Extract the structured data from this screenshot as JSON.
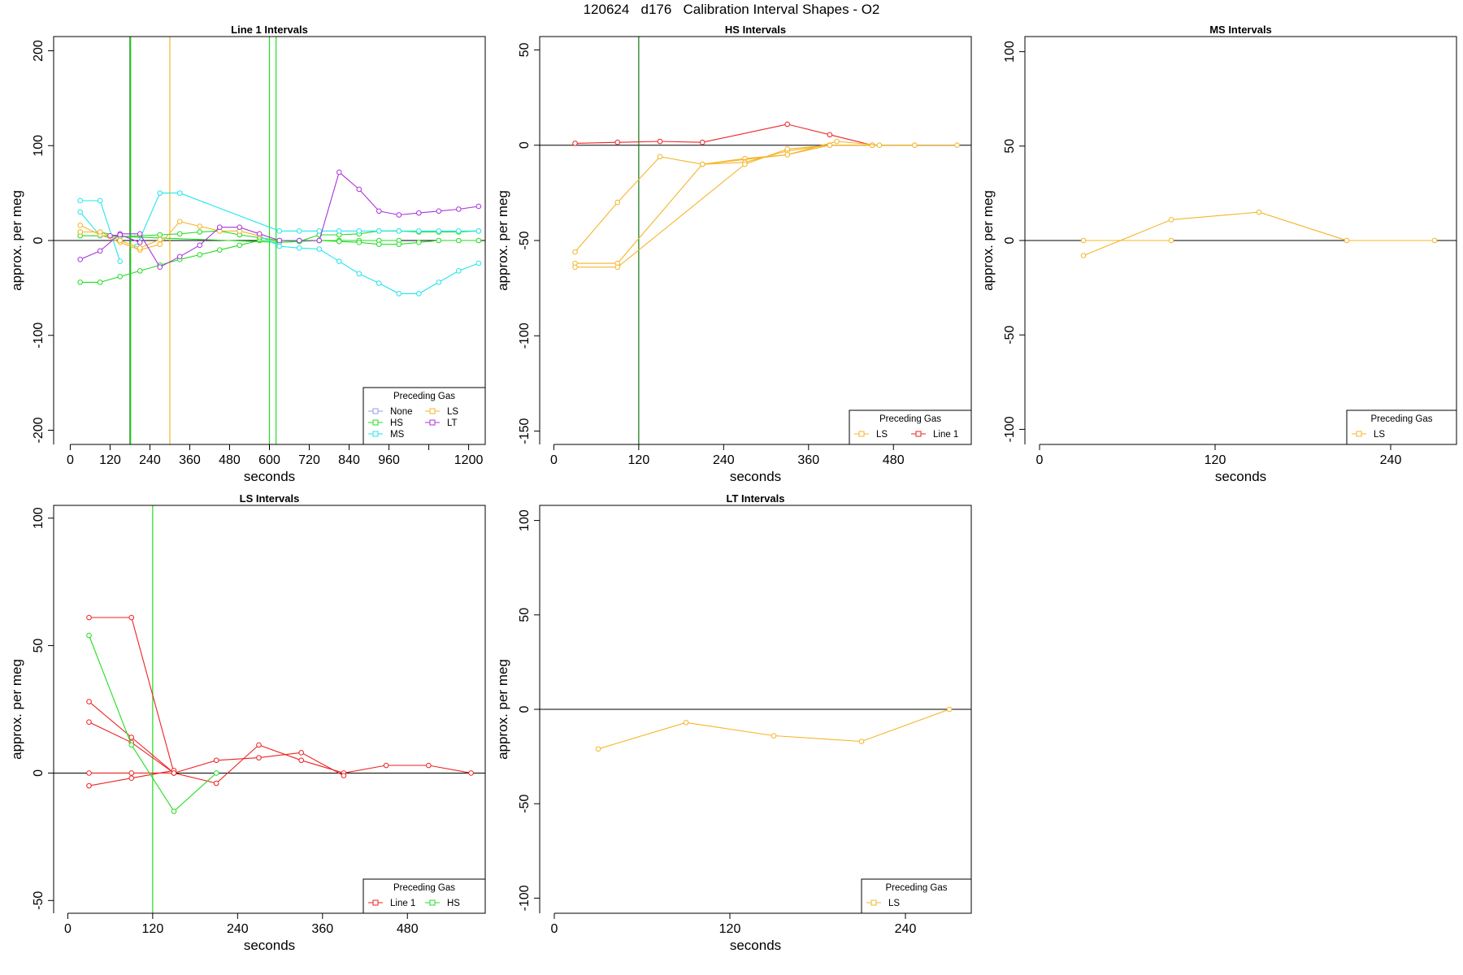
{
  "title": "120624   d176   Calibration Interval Shapes - O2",
  "colors": {
    "None": "#9999ee",
    "HS": "#22dd22",
    "MS": "#22e6ee",
    "LS": "#f5b52a",
    "LT": "#aa33dd",
    "Line 1": "#ee2222",
    "vline_dark": "#117711",
    "axis": "#000000"
  },
  "chart_data": [
    {
      "type": "line",
      "title": "Line 1 Intervals",
      "xlabel": "seconds",
      "ylabel": "approx. per meg",
      "xlim": [
        -50,
        1250
      ],
      "ylim": [
        -215,
        215
      ],
      "xticks": [
        0,
        120,
        240,
        360,
        480,
        600,
        720,
        840,
        960,
        1080,
        1200
      ],
      "xtick_labels": [
        "0",
        "120",
        "240",
        "360",
        "480",
        "600",
        "720",
        "840",
        "960",
        "",
        "1200"
      ],
      "yticks": [
        -200,
        -100,
        0,
        100,
        200
      ],
      "legend": {
        "title": "Preceding Gas",
        "position": "bottom-right",
        "columns": 2,
        "entries": [
          "None",
          "HS",
          "MS",
          "LS",
          "LT"
        ]
      },
      "vlines": [
        {
          "x": 180,
          "color": "vline_dark"
        },
        {
          "x": 182,
          "color": "HS"
        },
        {
          "x": 300,
          "color": "LS"
        },
        {
          "x": 600,
          "color": "HS"
        },
        {
          "x": 620,
          "color": "HS"
        }
      ],
      "series": [
        {
          "name": "HS",
          "x": [
            30,
            90,
            150,
            210,
            270,
            330,
            390,
            450,
            510,
            570,
            630,
            690,
            750,
            810,
            870,
            930,
            990
          ],
          "y": [
            -44,
            -44,
            -38,
            -32,
            -26,
            -20,
            -15,
            -10,
            -5,
            0,
            0,
            0,
            0,
            0,
            0,
            0,
            0
          ]
        },
        {
          "name": "HS",
          "x": [
            30,
            90,
            150,
            210,
            270,
            330,
            390,
            450,
            510,
            570,
            630,
            690,
            750,
            810,
            870,
            930,
            990,
            1050,
            1110,
            1170,
            1230
          ],
          "y": [
            9,
            9,
            4,
            5,
            6,
            7,
            9,
            10,
            6,
            3,
            0,
            -1,
            0,
            -1,
            -2,
            -4,
            -4,
            -2,
            0,
            0,
            0
          ]
        },
        {
          "name": "HS",
          "x": [
            30,
            90,
            630,
            690,
            750,
            810,
            870,
            930,
            990,
            1050,
            1110,
            1170,
            1230
          ],
          "y": [
            5,
            5,
            -2,
            -1,
            6,
            6,
            7,
            10,
            10,
            9,
            9,
            9,
            10
          ]
        },
        {
          "name": "MS",
          "x": [
            30,
            90,
            150
          ],
          "y": [
            42,
            42,
            -22
          ]
        },
        {
          "name": "MS",
          "x": [
            30,
            90
          ],
          "y": [
            30,
            5
          ]
        },
        {
          "name": "MS",
          "x": [
            200,
            270,
            330,
            630,
            690,
            750,
            810,
            870,
            930,
            990,
            1050,
            1110,
            1170,
            1230
          ],
          "y": [
            -6,
            50,
            50,
            10,
            10,
            10,
            10,
            10,
            10,
            10,
            10,
            10,
            10,
            10
          ]
        },
        {
          "name": "MS",
          "x": [
            570,
            630,
            690,
            750,
            810,
            870,
            930,
            990,
            1050,
            1110,
            1170,
            1230
          ],
          "y": [
            5,
            -6,
            -8,
            -9,
            -22,
            -35,
            -45,
            -56,
            -56,
            -44,
            -32,
            -24
          ]
        },
        {
          "name": "LS",
          "x": [
            30,
            90,
            150,
            210,
            270,
            330,
            390,
            450,
            510,
            570
          ],
          "y": [
            16,
            6,
            -2,
            -10,
            -4,
            20,
            15,
            10,
            10,
            5
          ]
        },
        {
          "name": "LS",
          "x": [
            30,
            90,
            150,
            210,
            270
          ],
          "y": [
            9,
            9,
            0,
            -8,
            1
          ]
        },
        {
          "name": "LT",
          "x": [
            30,
            90,
            150,
            210,
            270,
            330,
            390,
            450,
            510,
            570,
            630,
            690,
            750,
            810,
            870,
            930,
            990,
            1050,
            1110,
            1170,
            1230
          ],
          "y": [
            -20,
            -11,
            7,
            7,
            -28,
            -17,
            -5,
            14,
            14,
            7,
            0,
            0,
            0,
            72,
            54,
            31,
            27,
            29,
            31,
            33,
            36
          ]
        },
        {
          "name": "LT",
          "x": [
            120,
            150,
            210
          ],
          "y": [
            5,
            6,
            -2
          ]
        }
      ]
    },
    {
      "type": "line",
      "title": "HS Intervals",
      "xlabel": "seconds",
      "ylabel": "approx. per meg",
      "xlim": [
        -20,
        590
      ],
      "ylim": [
        -157,
        57
      ],
      "xticks": [
        0,
        120,
        240,
        360,
        480
      ],
      "yticks": [
        -150,
        -100,
        -50,
        0,
        50
      ],
      "legend": {
        "title": "Preceding Gas",
        "position": "bottom-right",
        "columns": 2,
        "entries": [
          "LS",
          "Line 1"
        ]
      },
      "vlines": [
        {
          "x": 120,
          "color": "vline_dark"
        }
      ],
      "series": [
        {
          "name": "Line 1",
          "x": [
            30,
            90,
            150,
            210,
            330,
            390,
            450
          ],
          "y": [
            1,
            1.5,
            2,
            1.5,
            11,
            5.5,
            0
          ]
        },
        {
          "name": "LS",
          "x": [
            30,
            90,
            150,
            210,
            270,
            330,
            390,
            450
          ],
          "y": [
            -56,
            -30,
            -6,
            -10,
            -7,
            -5,
            0,
            0
          ]
        },
        {
          "name": "LS",
          "x": [
            30,
            90,
            210,
            270,
            330,
            390,
            450,
            510,
            570
          ],
          "y": [
            -62,
            -62,
            -10,
            -9,
            -3,
            0,
            0,
            0,
            0
          ]
        },
        {
          "name": "LS",
          "x": [
            30,
            90,
            270,
            330,
            390,
            450,
            510
          ],
          "y": [
            -64,
            -64,
            -10,
            -2,
            0,
            0,
            0
          ]
        },
        {
          "name": "LS",
          "x": [
            210,
            330,
            400,
            460
          ],
          "y": [
            -10,
            -5,
            2,
            0
          ]
        }
      ]
    },
    {
      "type": "line",
      "title": "MS Intervals",
      "xlabel": "seconds",
      "ylabel": "approx. per meg",
      "xlim": [
        -10,
        285
      ],
      "ylim": [
        -108,
        108
      ],
      "xticks": [
        0,
        120,
        240
      ],
      "yticks": [
        -100,
        -50,
        0,
        50,
        100
      ],
      "legend": {
        "title": "Preceding Gas",
        "position": "bottom-right",
        "columns": 1,
        "entries": [
          "LS"
        ]
      },
      "vlines": [],
      "series": [
        {
          "name": "LS",
          "x": [
            30,
            90,
            150,
            210,
            270
          ],
          "y": [
            -8,
            11,
            15,
            0,
            0
          ]
        },
        {
          "name": "LS",
          "x": [
            30,
            90
          ],
          "y": [
            0,
            0
          ]
        }
      ]
    },
    {
      "type": "line",
      "title": "LS Intervals",
      "xlabel": "seconds",
      "ylabel": "approx. per meg",
      "xlim": [
        -20,
        590
      ],
      "ylim": [
        -55,
        105
      ],
      "xticks": [
        0,
        120,
        240,
        360,
        480
      ],
      "yticks": [
        -50,
        0,
        50,
        100
      ],
      "legend": {
        "title": "Preceding Gas",
        "position": "bottom-right",
        "columns": 2,
        "entries": [
          "Line 1",
          "HS"
        ]
      },
      "vlines": [
        {
          "x": 120,
          "color": "HS"
        }
      ],
      "series": [
        {
          "name": "Line 1",
          "x": [
            30,
            90,
            150,
            210,
            270,
            330,
            390,
            450,
            510,
            570
          ],
          "y": [
            61,
            61,
            0,
            -4,
            11,
            5,
            0,
            3,
            3,
            0
          ]
        },
        {
          "name": "Line 1",
          "x": [
            30,
            90,
            150
          ],
          "y": [
            28,
            14,
            0
          ]
        },
        {
          "name": "Line 1",
          "x": [
            30,
            90,
            150,
            210,
            270,
            330,
            390
          ],
          "y": [
            20,
            12,
            0,
            5,
            6,
            8,
            -1
          ]
        },
        {
          "name": "Line 1",
          "x": [
            30,
            90,
            150
          ],
          "y": [
            -5,
            -2,
            1
          ]
        },
        {
          "name": "Line 1",
          "x": [
            30,
            90,
            150
          ],
          "y": [
            0,
            0,
            0
          ]
        },
        {
          "name": "HS",
          "x": [
            30,
            90,
            150,
            210
          ],
          "y": [
            54,
            11,
            -15,
            0
          ]
        }
      ]
    },
    {
      "type": "line",
      "title": "LT Intervals",
      "xlabel": "seconds",
      "ylabel": "approx. per meg",
      "xlim": [
        -10,
        285
      ],
      "ylim": [
        -108,
        108
      ],
      "xticks": [
        0,
        120,
        240
      ],
      "yticks": [
        -100,
        -50,
        0,
        50,
        100
      ],
      "legend": {
        "title": "Preceding Gas",
        "position": "bottom-right",
        "columns": 1,
        "entries": [
          "LS"
        ]
      },
      "vlines": [],
      "series": [
        {
          "name": "LS",
          "x": [
            30,
            90,
            150,
            210,
            270
          ],
          "y": [
            -21,
            -7,
            -14,
            -17,
            0
          ]
        }
      ]
    }
  ]
}
